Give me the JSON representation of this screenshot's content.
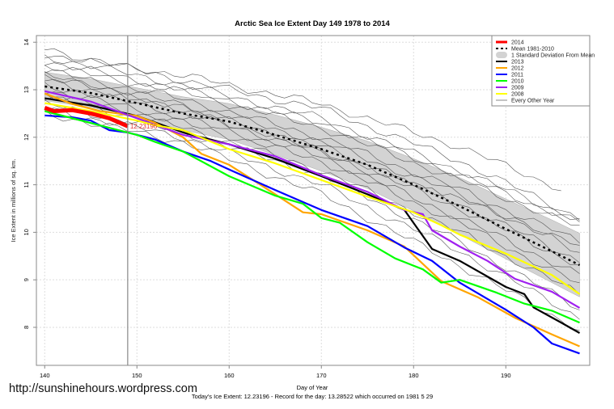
{
  "chart_data": {
    "type": "line",
    "title": "Arctic Sea Ice Extent Day 149 1978 to 2014",
    "xlabel": "Day of Year",
    "ylabel": "Ice Extent in millions of sq. km.",
    "footer": "Today's Ice Extent: 12.23196  - Record for the day: 13.28522 which occurred on 1981 5 29",
    "watermark": "http://sunshinehours.wordpress.com",
    "xlim": [
      139.1,
      199.1
    ],
    "ylim": [
      7.2,
      14.14
    ],
    "x_ticks": [
      140,
      150,
      160,
      170,
      180,
      190
    ],
    "y_ticks": [
      8,
      9,
      10,
      11,
      12,
      13,
      14
    ],
    "grid": true,
    "marker_day": 149,
    "legend_position": "top-right",
    "legend": [
      {
        "label": "2014",
        "color": "#ff0000",
        "style": "thick"
      },
      {
        "label": "Mean 1981-2010",
        "color": "#000000",
        "style": "dashed"
      },
      {
        "label": "1 Standard Deviation From Mean",
        "color": "#d3d3d3",
        "style": "band"
      },
      {
        "label": "2013",
        "color": "#000000",
        "style": "solid"
      },
      {
        "label": "2012",
        "color": "#ffa500",
        "style": "solid"
      },
      {
        "label": "2011",
        "color": "#0000ff",
        "style": "solid"
      },
      {
        "label": "2010",
        "color": "#00ff00",
        "style": "solid"
      },
      {
        "label": "2009",
        "color": "#a020f0",
        "style": "solid"
      },
      {
        "label": "2008",
        "color": "#ffff00",
        "style": "solid"
      },
      {
        "label": "Every Other Year",
        "color": "#888888",
        "style": "thin"
      }
    ],
    "today_label": "12.23196",
    "mean": {
      "x": [
        140,
        145,
        150,
        155,
        160,
        165,
        170,
        175,
        180,
        185,
        190,
        195,
        198
      ],
      "y": [
        13.07,
        12.93,
        12.72,
        12.5,
        12.33,
        12.05,
        11.75,
        11.42,
        11.0,
        10.55,
        10.07,
        9.6,
        9.31
      ],
      "sd": [
        0.3,
        0.3,
        0.32,
        0.35,
        0.38,
        0.42,
        0.46,
        0.5,
        0.55,
        0.6,
        0.63,
        0.66,
        0.67
      ]
    },
    "series": [
      {
        "name": "2013",
        "color": "#000000",
        "x": [
          140,
          145,
          150,
          155,
          160,
          165,
          170,
          175,
          179,
          182,
          185,
          190,
          192,
          193,
          196,
          198
        ],
        "y": [
          12.82,
          12.67,
          12.45,
          12.1,
          11.85,
          11.55,
          11.18,
          10.8,
          10.47,
          9.65,
          9.4,
          8.85,
          8.7,
          8.42,
          8.1,
          7.88
        ]
      },
      {
        "name": "2012",
        "color": "#ffa500",
        "x": [
          140,
          143,
          146,
          150,
          152,
          155,
          157,
          160,
          163,
          165,
          168,
          170,
          175,
          179,
          183,
          187,
          191,
          195,
          198
        ],
        "y": [
          12.92,
          12.7,
          12.55,
          12.45,
          12.3,
          12.0,
          11.65,
          11.42,
          11.05,
          10.8,
          10.42,
          10.38,
          10.04,
          9.7,
          8.97,
          8.63,
          8.2,
          7.85,
          7.6
        ]
      },
      {
        "name": "2011",
        "color": "#0000ff",
        "x": [
          140,
          143,
          145,
          147,
          149,
          152,
          155,
          158,
          160,
          165,
          170,
          175,
          179,
          182,
          185,
          190,
          193,
          195,
          198
        ],
        "y": [
          12.46,
          12.42,
          12.35,
          12.15,
          12.1,
          11.95,
          11.7,
          11.5,
          11.32,
          10.89,
          10.47,
          10.13,
          9.68,
          9.4,
          8.94,
          8.37,
          8.0,
          7.66,
          7.45
        ]
      },
      {
        "name": "2010",
        "color": "#00ff00",
        "x": [
          140,
          145,
          150,
          152,
          155,
          160,
          165,
          168,
          170,
          172,
          175,
          178,
          181,
          183,
          185,
          189,
          192,
          195,
          198
        ],
        "y": [
          12.55,
          12.3,
          12.05,
          11.9,
          11.7,
          11.18,
          10.77,
          10.6,
          10.3,
          10.2,
          9.79,
          9.45,
          9.22,
          8.94,
          9.0,
          8.73,
          8.5,
          8.35,
          8.1
        ]
      },
      {
        "name": "2009",
        "color": "#a020f0",
        "x": [
          140,
          145,
          150,
          155,
          160,
          165,
          170,
          175,
          179,
          181,
          182,
          185,
          188,
          191,
          195,
          198
        ],
        "y": [
          12.97,
          12.75,
          12.4,
          12.05,
          11.85,
          11.6,
          11.2,
          10.85,
          10.47,
          10.38,
          10.04,
          9.7,
          9.4,
          9.02,
          8.75,
          8.41
        ]
      },
      {
        "name": "2008",
        "color": "#ffff00",
        "x": [
          140,
          145,
          150,
          152,
          155,
          160,
          165,
          170,
          175,
          180,
          183,
          185,
          190,
          195,
          198
        ],
        "y": [
          12.72,
          12.55,
          12.35,
          12.25,
          12.15,
          11.75,
          11.45,
          11.1,
          10.75,
          10.42,
          10.15,
          9.95,
          9.55,
          9.1,
          8.7
        ]
      },
      {
        "name": "2014",
        "color": "#ff0000",
        "x": [
          140,
          141,
          143,
          145,
          147,
          149
        ],
        "y": [
          12.62,
          12.55,
          12.57,
          12.5,
          12.4,
          12.23196
        ]
      }
    ],
    "other_years": {
      "x": [
        140,
        155,
        170,
        185,
        198
      ],
      "lines": [
        [
          13.85,
          13.2,
          12.6,
          11.5,
          10.3
        ],
        [
          13.7,
          13.1,
          12.4,
          11.3,
          10.25
        ],
        [
          13.6,
          13.0,
          12.3,
          11.2,
          10.2
        ],
        [
          13.5,
          12.95,
          12.2,
          11.1,
          10.1
        ],
        [
          13.4,
          12.8,
          12.0,
          10.9,
          9.8
        ],
        [
          13.3,
          12.7,
          11.9,
          10.8,
          9.6
        ],
        [
          13.2,
          12.6,
          11.8,
          10.6,
          9.4
        ],
        [
          13.1,
          12.5,
          11.7,
          10.5,
          9.3
        ],
        [
          13.0,
          12.4,
          11.6,
          10.3,
          9.1
        ],
        [
          12.9,
          12.3,
          11.5,
          10.2,
          8.9
        ],
        [
          12.85,
          12.2,
          11.3,
          10.0,
          8.7
        ],
        [
          12.7,
          12.1,
          11.2,
          9.8,
          8.4
        ],
        [
          12.6,
          12.0,
          11.0,
          9.6,
          8.2
        ],
        [
          12.5,
          11.9,
          10.8,
          9.3,
          7.95
        ],
        [
          13.75,
          13.3,
          12.7,
          11.8,
          10.75
        ],
        [
          13.3,
          12.6,
          11.7,
          10.7,
          9.7
        ]
      ]
    }
  }
}
